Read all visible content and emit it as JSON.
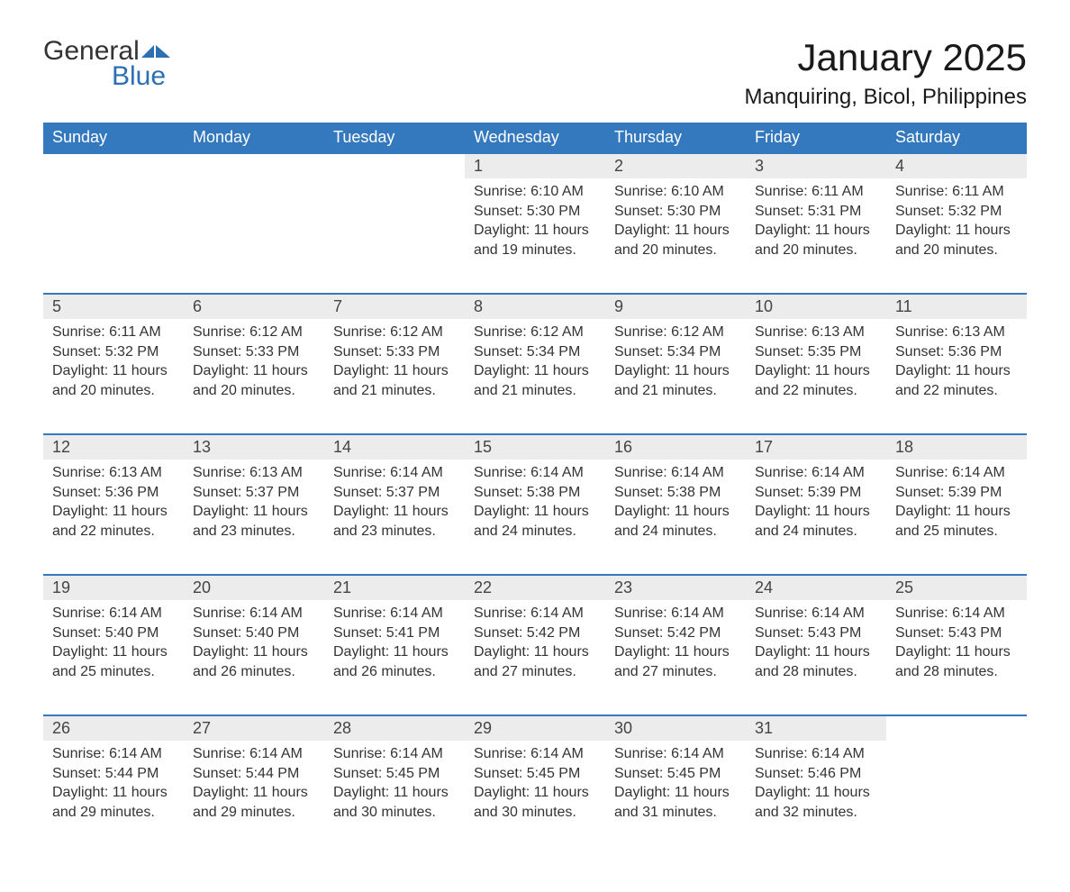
{
  "logo": {
    "text_general": "General",
    "text_blue": "Blue",
    "flag_color": "#2c6fb3"
  },
  "title": "January 2025",
  "location": "Manquiring, Bicol, Philippines",
  "colors": {
    "header_bg": "#3478bd",
    "header_text": "#ffffff",
    "row_divider": "#3478bd",
    "daynum_bg": "#ececec",
    "body_text": "#333333",
    "page_bg": "#ffffff"
  },
  "fonts": {
    "title_size_pt": 42,
    "location_size_pt": 24,
    "header_size_pt": 18,
    "cell_size_pt": 16
  },
  "day_headers": [
    "Sunday",
    "Monday",
    "Tuesday",
    "Wednesday",
    "Thursday",
    "Friday",
    "Saturday"
  ],
  "labels": {
    "sunrise": "Sunrise: ",
    "sunset": "Sunset: ",
    "daylight": "Daylight: "
  },
  "weeks": [
    [
      null,
      null,
      null,
      {
        "n": "1",
        "sunrise": "6:10 AM",
        "sunset": "5:30 PM",
        "daylight": "11 hours and 19 minutes."
      },
      {
        "n": "2",
        "sunrise": "6:10 AM",
        "sunset": "5:30 PM",
        "daylight": "11 hours and 20 minutes."
      },
      {
        "n": "3",
        "sunrise": "6:11 AM",
        "sunset": "5:31 PM",
        "daylight": "11 hours and 20 minutes."
      },
      {
        "n": "4",
        "sunrise": "6:11 AM",
        "sunset": "5:32 PM",
        "daylight": "11 hours and 20 minutes."
      }
    ],
    [
      {
        "n": "5",
        "sunrise": "6:11 AM",
        "sunset": "5:32 PM",
        "daylight": "11 hours and 20 minutes."
      },
      {
        "n": "6",
        "sunrise": "6:12 AM",
        "sunset": "5:33 PM",
        "daylight": "11 hours and 20 minutes."
      },
      {
        "n": "7",
        "sunrise": "6:12 AM",
        "sunset": "5:33 PM",
        "daylight": "11 hours and 21 minutes."
      },
      {
        "n": "8",
        "sunrise": "6:12 AM",
        "sunset": "5:34 PM",
        "daylight": "11 hours and 21 minutes."
      },
      {
        "n": "9",
        "sunrise": "6:12 AM",
        "sunset": "5:34 PM",
        "daylight": "11 hours and 21 minutes."
      },
      {
        "n": "10",
        "sunrise": "6:13 AM",
        "sunset": "5:35 PM",
        "daylight": "11 hours and 22 minutes."
      },
      {
        "n": "11",
        "sunrise": "6:13 AM",
        "sunset": "5:36 PM",
        "daylight": "11 hours and 22 minutes."
      }
    ],
    [
      {
        "n": "12",
        "sunrise": "6:13 AM",
        "sunset": "5:36 PM",
        "daylight": "11 hours and 22 minutes."
      },
      {
        "n": "13",
        "sunrise": "6:13 AM",
        "sunset": "5:37 PM",
        "daylight": "11 hours and 23 minutes."
      },
      {
        "n": "14",
        "sunrise": "6:14 AM",
        "sunset": "5:37 PM",
        "daylight": "11 hours and 23 minutes."
      },
      {
        "n": "15",
        "sunrise": "6:14 AM",
        "sunset": "5:38 PM",
        "daylight": "11 hours and 24 minutes."
      },
      {
        "n": "16",
        "sunrise": "6:14 AM",
        "sunset": "5:38 PM",
        "daylight": "11 hours and 24 minutes."
      },
      {
        "n": "17",
        "sunrise": "6:14 AM",
        "sunset": "5:39 PM",
        "daylight": "11 hours and 24 minutes."
      },
      {
        "n": "18",
        "sunrise": "6:14 AM",
        "sunset": "5:39 PM",
        "daylight": "11 hours and 25 minutes."
      }
    ],
    [
      {
        "n": "19",
        "sunrise": "6:14 AM",
        "sunset": "5:40 PM",
        "daylight": "11 hours and 25 minutes."
      },
      {
        "n": "20",
        "sunrise": "6:14 AM",
        "sunset": "5:40 PM",
        "daylight": "11 hours and 26 minutes."
      },
      {
        "n": "21",
        "sunrise": "6:14 AM",
        "sunset": "5:41 PM",
        "daylight": "11 hours and 26 minutes."
      },
      {
        "n": "22",
        "sunrise": "6:14 AM",
        "sunset": "5:42 PM",
        "daylight": "11 hours and 27 minutes."
      },
      {
        "n": "23",
        "sunrise": "6:14 AM",
        "sunset": "5:42 PM",
        "daylight": "11 hours and 27 minutes."
      },
      {
        "n": "24",
        "sunrise": "6:14 AM",
        "sunset": "5:43 PM",
        "daylight": "11 hours and 28 minutes."
      },
      {
        "n": "25",
        "sunrise": "6:14 AM",
        "sunset": "5:43 PM",
        "daylight": "11 hours and 28 minutes."
      }
    ],
    [
      {
        "n": "26",
        "sunrise": "6:14 AM",
        "sunset": "5:44 PM",
        "daylight": "11 hours and 29 minutes."
      },
      {
        "n": "27",
        "sunrise": "6:14 AM",
        "sunset": "5:44 PM",
        "daylight": "11 hours and 29 minutes."
      },
      {
        "n": "28",
        "sunrise": "6:14 AM",
        "sunset": "5:45 PM",
        "daylight": "11 hours and 30 minutes."
      },
      {
        "n": "29",
        "sunrise": "6:14 AM",
        "sunset": "5:45 PM",
        "daylight": "11 hours and 30 minutes."
      },
      {
        "n": "30",
        "sunrise": "6:14 AM",
        "sunset": "5:45 PM",
        "daylight": "11 hours and 31 minutes."
      },
      {
        "n": "31",
        "sunrise": "6:14 AM",
        "sunset": "5:46 PM",
        "daylight": "11 hours and 32 minutes."
      },
      null
    ]
  ]
}
